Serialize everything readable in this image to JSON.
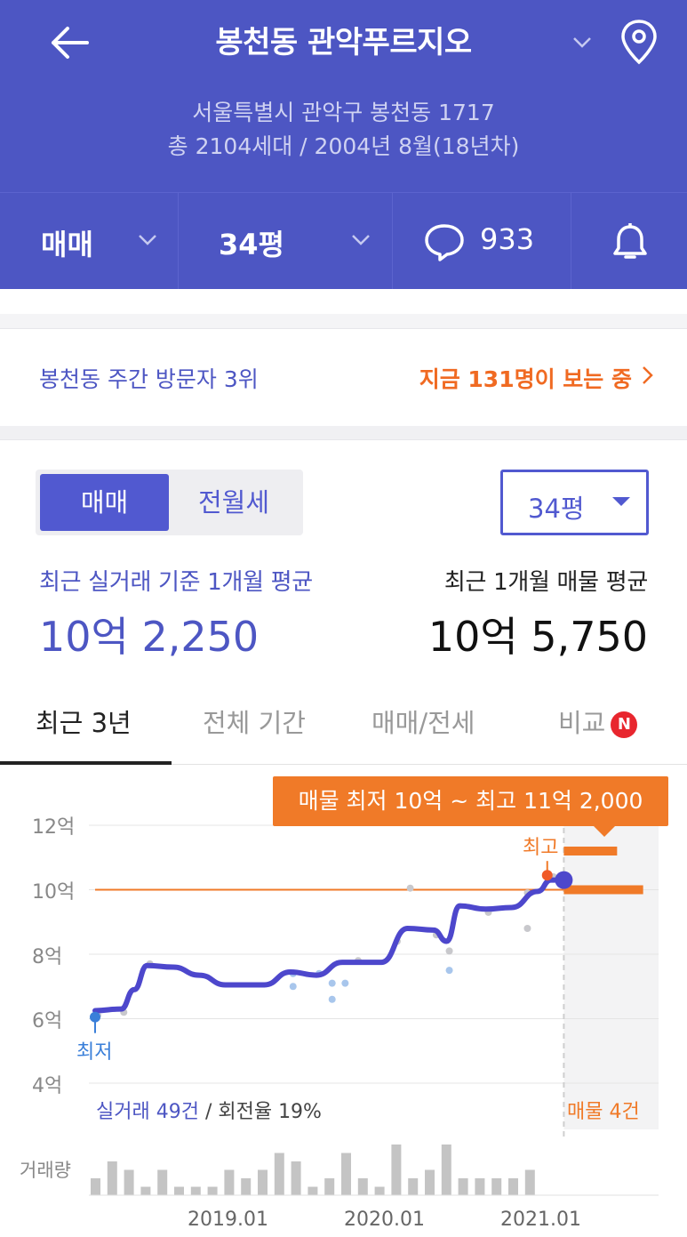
{
  "header": {
    "title": "봉천동 관악푸르지오",
    "address": "서울특별시 관악구 봉천동 1717",
    "summary": "총 2104세대 / 2004년 8월(18년차)",
    "deal_type": "매매",
    "size": "34평",
    "comments_count": "933"
  },
  "visitors": {
    "rank_text": "봉천동 주간 방문자 3위",
    "live_text": "지금 131명이 보는 중"
  },
  "controls": {
    "segment_sale": "매매",
    "segment_rent": "전월세",
    "size_select": "34평"
  },
  "averages": {
    "recent_trade_caption": "최근 실거래 기준 1개월 평균",
    "recent_trade_value": "10억 2,250",
    "listing_caption": "최근 1개월 매물 평균",
    "listing_value": "10억 5,750"
  },
  "tabs": [
    {
      "label": "최근 3년",
      "active": true
    },
    {
      "label": "전체 기간",
      "active": false
    },
    {
      "label": "매매/전세",
      "active": false
    },
    {
      "label": "비교",
      "active": false,
      "badge": "N"
    }
  ],
  "chart_data": {
    "type": "line",
    "tooltip": "매물 최저 10억 ~ 최고 11억 2,000",
    "y_tick_labels": [
      "12억",
      "10억",
      "8억",
      "6억",
      "4억"
    ],
    "ylim": [
      4,
      12
    ],
    "y_unit": "억",
    "x_tick_labels": [
      "2019.01",
      "2020.01",
      "2021.01"
    ],
    "low_label": "최저",
    "high_label": "최고",
    "transactions_text": "실거래 49건",
    "turnover_text": " / 회전율 19%",
    "listings_text": "매물 4건",
    "volume_label": "거래량",
    "reference_value": 10.0,
    "x_domain": [
      "2018.01",
      "2021.06"
    ],
    "price_line": [
      [
        "2018.01",
        6.25
      ],
      [
        "2018.03",
        6.3
      ],
      [
        "2018.04",
        6.9
      ],
      [
        "2018.05",
        7.65
      ],
      [
        "2018.07",
        7.6
      ],
      [
        "2018.09",
        7.35
      ],
      [
        "2018.11",
        7.05
      ],
      [
        "2019.02",
        7.05
      ],
      [
        "2019.04",
        7.45
      ],
      [
        "2019.06",
        7.35
      ],
      [
        "2019.08",
        7.75
      ],
      [
        "2019.11",
        7.75
      ],
      [
        "2020.01",
        8.8
      ],
      [
        "2020.03",
        8.75
      ],
      [
        "2020.04",
        8.4
      ],
      [
        "2020.05",
        9.5
      ],
      [
        "2020.07",
        9.4
      ],
      [
        "2020.09",
        9.45
      ],
      [
        "2020.11",
        9.95
      ],
      [
        "2020.12",
        10.3
      ]
    ],
    "trades": [
      [
        "2018.01",
        6.1
      ],
      [
        "2018.03",
        6.2
      ],
      [
        "2018.05",
        7.7
      ],
      [
        "2019.04",
        7.0
      ],
      [
        "2019.04",
        7.4
      ],
      [
        "2019.06",
        7.4
      ],
      [
        "2019.07",
        7.1
      ],
      [
        "2019.07",
        6.6
      ],
      [
        "2019.08",
        7.1
      ],
      [
        "2019.09",
        7.8
      ],
      [
        "2019.12",
        8.4
      ],
      [
        "2020.01",
        10.05
      ],
      [
        "2020.03",
        8.6
      ],
      [
        "2020.04",
        8.1
      ],
      [
        "2020.04",
        7.5
      ],
      [
        "2020.07",
        9.3
      ],
      [
        "2020.10",
        9.9
      ],
      [
        "2020.10",
        8.8
      ],
      [
        "2020.12",
        10.4
      ]
    ],
    "low_point": [
      "2018.01",
      6.05
    ],
    "high_point": [
      "2020.12",
      10.45
    ],
    "current_point": [
      "2021.01",
      10.3
    ],
    "listing_bars": [
      {
        "value": 11.2,
        "x_start": "2021.01",
        "x_end": "2021.04"
      },
      {
        "value": 10.0,
        "x_start": "2021.01",
        "x_end": "2021.06"
      }
    ],
    "volume": [
      2,
      4,
      3,
      1,
      3,
      1,
      1,
      1,
      3,
      2,
      3,
      5,
      4,
      1,
      2,
      5,
      2,
      1,
      6,
      2,
      3,
      6,
      2,
      2,
      2,
      2,
      3
    ]
  }
}
